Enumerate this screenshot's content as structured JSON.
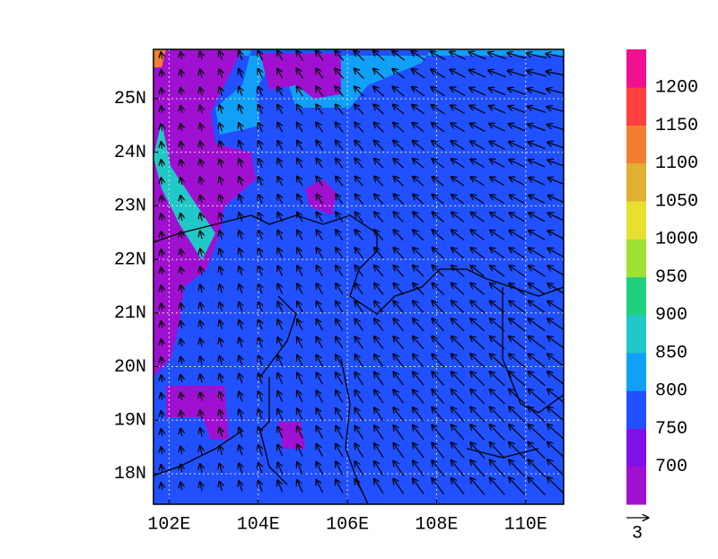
{
  "map": {
    "xlim": [
      101.65,
      110.85
    ],
    "ylim": [
      17.43,
      25.92
    ],
    "xticks": [
      {
        "value": 102,
        "label": "102E"
      },
      {
        "value": 104,
        "label": "104E"
      },
      {
        "value": 106,
        "label": "106E"
      },
      {
        "value": 108,
        "label": "108E"
      },
      {
        "value": 110,
        "label": "110E"
      }
    ],
    "yticks": [
      {
        "value": 18,
        "label": "18N"
      },
      {
        "value": 19,
        "label": "19N"
      },
      {
        "value": 20,
        "label": "20N"
      },
      {
        "value": 21,
        "label": "21N"
      },
      {
        "value": 22,
        "label": "22N"
      },
      {
        "value": 23,
        "label": "23N"
      },
      {
        "value": 24,
        "label": "24N"
      },
      {
        "value": 25,
        "label": "25N"
      }
    ],
    "colorbar": {
      "levels": [
        700,
        750,
        800,
        850,
        900,
        950,
        1000,
        1050,
        1100,
        1150,
        1200
      ],
      "colors": [
        "#a010d0",
        "#8010e8",
        "#2050ff",
        "#10a0f8",
        "#20c8c8",
        "#20d080",
        "#a0e030",
        "#e8e030",
        "#e0b030",
        "#f08030",
        "#ff4040",
        "#f01090"
      ]
    },
    "reference_vector": {
      "label": "3"
    }
  }
}
